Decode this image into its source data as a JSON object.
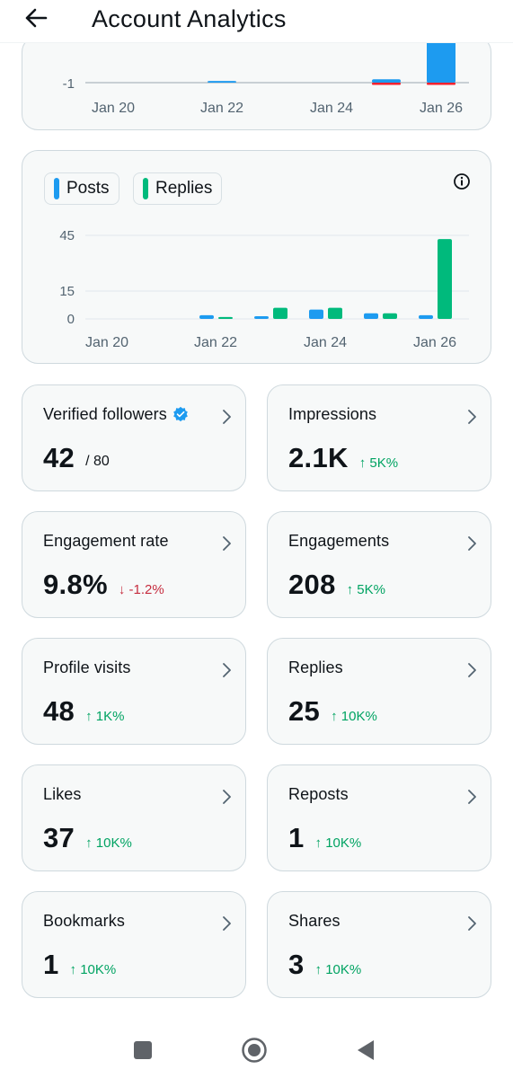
{
  "header": {
    "title": "Account Analytics",
    "back_icon": "arrow-left-icon"
  },
  "colors": {
    "posts": "#1d9bf0",
    "replies": "#00ba7c",
    "negative": "#f4212e",
    "up": "#00a362",
    "down": "#c62d3f",
    "card_bg": "#f7f9f9",
    "card_border": "#cfd9de"
  },
  "chart_top": {
    "ytick": "-1",
    "xticks": [
      "Jan 20",
      "Jan 22",
      "Jan 24",
      "Jan 26"
    ]
  },
  "chart_main": {
    "legend": {
      "posts": "Posts",
      "replies": "Replies"
    },
    "info_icon": "info-icon",
    "yticks": [
      "45",
      "15",
      "0"
    ],
    "xticks": [
      "Jan 20",
      "Jan 22",
      "Jan 24",
      "Jan 26"
    ]
  },
  "chart_data": [
    {
      "type": "bar",
      "categories": [
        "Jan 20",
        "Jan 21",
        "Jan 22",
        "Jan 23",
        "Jan 24",
        "Jan 25",
        "Jan 26"
      ],
      "series": [
        {
          "name": "",
          "values": [
            0,
            0,
            0.1,
            0,
            0,
            0.2,
            2.5
          ]
        },
        {
          "name": "",
          "values": [
            0,
            0,
            0,
            0,
            0,
            -0.2,
            -0.2
          ]
        }
      ],
      "yticks": [
        -1
      ],
      "xticklabels": [
        "Jan 20",
        "Jan 22",
        "Jan 24",
        "Jan 26"
      ]
    },
    {
      "type": "bar",
      "categories": [
        "Jan 20",
        "Jan 21",
        "Jan 22",
        "Jan 23",
        "Jan 24",
        "Jan 25",
        "Jan 26"
      ],
      "series": [
        {
          "name": "Posts",
          "values": [
            0,
            0,
            2,
            1,
            5,
            3,
            2
          ]
        },
        {
          "name": "Replies",
          "values": [
            0,
            0,
            1,
            6,
            6,
            3,
            43
          ]
        }
      ],
      "yticks": [
        45,
        15,
        0
      ],
      "xticklabels": [
        "Jan 20",
        "Jan 22",
        "Jan 24",
        "Jan 26"
      ],
      "ylim": [
        0,
        45
      ]
    }
  ],
  "metrics": [
    {
      "label": "Verified followers",
      "value": "42",
      "sub": "/ 80",
      "verified": true
    },
    {
      "label": "Impressions",
      "value": "2.1K",
      "delta": "↑ 5K%",
      "trend": "up"
    },
    {
      "label": "Engagement rate",
      "value": "9.8%",
      "delta": "↓ -1.2%",
      "trend": "down"
    },
    {
      "label": "Engagements",
      "value": "208",
      "delta": "↑ 5K%",
      "trend": "up"
    },
    {
      "label": "Profile visits",
      "value": "48",
      "delta": "↑ 1K%",
      "trend": "up"
    },
    {
      "label": "Replies",
      "value": "25",
      "delta": "↑ 10K%",
      "trend": "up"
    },
    {
      "label": "Likes",
      "value": "37",
      "delta": "↑ 10K%",
      "trend": "up"
    },
    {
      "label": "Reposts",
      "value": "1",
      "delta": "↑ 10K%",
      "trend": "up"
    },
    {
      "label": "Bookmarks",
      "value": "1",
      "delta": "↑ 10K%",
      "trend": "up"
    },
    {
      "label": "Shares",
      "value": "3",
      "delta": "↑ 10K%",
      "trend": "up"
    }
  ],
  "navbar": {
    "recents": "square-icon",
    "home": "circle-home-icon",
    "back": "triangle-back-icon"
  }
}
